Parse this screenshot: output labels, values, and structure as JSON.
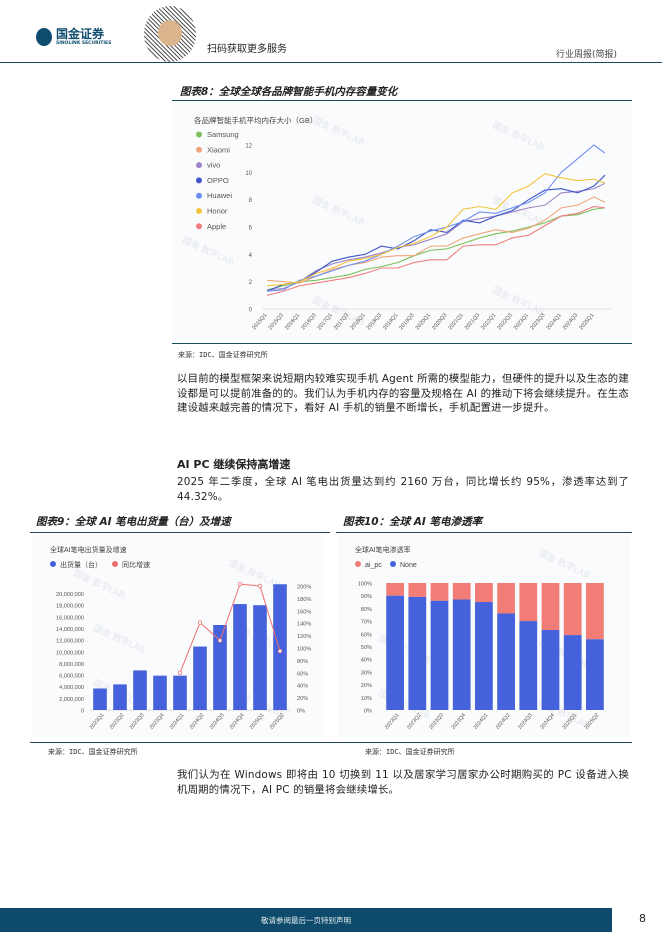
{
  "header": {
    "brand_cn": "国金证券",
    "brand_en": "SINOLINK SECURITIES",
    "qr_caption": "扫码获取更多服务",
    "report_type": "行业周报(简报)"
  },
  "fig8": {
    "title": "图表8：全球全球各品牌智能手机内存容量变化",
    "source": "来源：IDC、国金证券研究所",
    "chart_data": {
      "type": "line",
      "title": "各品牌智能手机平均内存大小（GB）",
      "xlabel": "",
      "ylabel": "",
      "ylim": [
        0,
        12
      ],
      "yticks": [
        0,
        2,
        4,
        6,
        8,
        10,
        12
      ],
      "grid": false,
      "legend": "top-left",
      "x": [
        "2015Q1",
        "2015Q3",
        "2016Q1",
        "2016Q3",
        "2017Q1",
        "2017Q3",
        "2018Q1",
        "2018Q3",
        "2019Q1",
        "2019Q3",
        "2020Q1",
        "2020Q3",
        "2021Q1",
        "2021Q3",
        "2022Q1",
        "2022Q3",
        "2023Q1",
        "2023Q3",
        "2024Q1",
        "2024Q3",
        "2025Q1",
        "2025Q2"
      ],
      "xtick_labels": [
        "2015Q1",
        "2015Q3",
        "2016Q1",
        "2016Q3",
        "2017Q1",
        "2017Q3",
        "2018Q1",
        "2018Q3",
        "2019Q1",
        "2019Q3",
        "2020Q1",
        "2020Q3",
        "2021Q1",
        "2021Q3",
        "2022Q1",
        "2022Q3",
        "2023Q1",
        "2023Q3",
        "2024Q1",
        "2024Q3",
        "2025Q1"
      ],
      "series": [
        {
          "name": "Samsung",
          "color": "#7cc05a",
          "values": [
            1.4,
            1.7,
            2.0,
            2.1,
            2.3,
            2.5,
            2.9,
            3.1,
            3.4,
            3.9,
            4.3,
            4.4,
            4.8,
            5.2,
            5.5,
            5.7,
            6.0,
            6.3,
            6.8,
            6.9,
            7.3,
            7.4
          ]
        },
        {
          "name": "Xiaomi",
          "color": "#eea77a",
          "values": [
            2.1,
            2.0,
            1.9,
            2.4,
            2.9,
            3.2,
            3.4,
            3.8,
            3.9,
            3.9,
            4.6,
            4.6,
            5.2,
            5.5,
            5.8,
            5.6,
            5.9,
            6.5,
            7.4,
            7.6,
            8.2,
            7.8
          ]
        },
        {
          "name": "vivo",
          "color": "#9e86c8",
          "values": [
            1.4,
            1.5,
            2.0,
            2.8,
            3.3,
            3.6,
            3.8,
            4.1,
            4.5,
            4.7,
            5.1,
            5.5,
            6.4,
            6.6,
            6.8,
            7.1,
            7.4,
            7.6,
            8.5,
            8.6,
            8.8,
            9.2
          ]
        },
        {
          "name": "OPPO",
          "color": "#3f55c9",
          "values": [
            1.3,
            1.8,
            2.0,
            2.7,
            3.5,
            3.8,
            4.0,
            4.6,
            4.4,
            5.0,
            5.8,
            5.6,
            6.5,
            6.3,
            6.8,
            7.2,
            8.0,
            8.7,
            8.8,
            8.5,
            9.0,
            9.8
          ]
        },
        {
          "name": "Huawei",
          "color": "#6f8ff0",
          "values": [
            1.3,
            1.4,
            2.1,
            2.4,
            2.8,
            3.2,
            3.5,
            4.0,
            4.6,
            5.3,
            5.7,
            6.0,
            6.4,
            7.1,
            7.0,
            7.4,
            7.8,
            8.5,
            10.0,
            11.0,
            12.0,
            11.4
          ]
        },
        {
          "name": "Honor",
          "color": "#f3c43c",
          "values": [
            1.7,
            1.8,
            2.0,
            2.6,
            3.0,
            3.5,
            3.7,
            4.0,
            4.5,
            4.8,
            5.3,
            6.0,
            7.3,
            7.5,
            7.3,
            8.5,
            9.0,
            9.9,
            9.6,
            9.4,
            9.5,
            9.2
          ]
        },
        {
          "name": "Apple",
          "color": "#ef7f7f",
          "values": [
            1.0,
            1.3,
            1.7,
            1.9,
            2.1,
            2.3,
            2.6,
            3.0,
            3.0,
            3.4,
            3.6,
            3.6,
            4.6,
            4.7,
            4.7,
            5.2,
            5.4,
            6.1,
            6.8,
            7.0,
            7.5,
            7.4
          ]
        }
      ]
    }
  },
  "body1": "以目前的模型框架来说短期内较难实现手机 Agent 所需的模型能力，但硬件的提升以及生态的建设都是可以提前准备的的。我们认为手机内存的容量及规格在 AI 的推动下将会继续提升。在生态建设越来越完善的情况下，看好 AI 手机的销量不断增长，手机配置进一步提升。",
  "section_heading": "AI PC 继续保持高增速",
  "body2": "2025 年二季度，全球 AI 笔电出货量达到约 2160 万台，同比增长约 95%，渗透率达到了 44.32%。",
  "fig9": {
    "title": "图表9：全球 AI 笔电出货量（台）及增速",
    "source": "来源：IDC、国金证券研究所",
    "chart_data": {
      "type": "bar",
      "title": "全球AI笔电出货量及增速",
      "legend": "top-left",
      "categories": [
        "2023Q1",
        "2023Q2",
        "2023Q3",
        "2023Q4",
        "2024Q1",
        "2024Q2",
        "2024Q3",
        "2024Q4",
        "2025Q1",
        "2025Q2"
      ],
      "series": [
        {
          "name": "出货量（台）",
          "type": "bar",
          "axis": "left",
          "color": "#4562dc",
          "values": [
            3700000,
            4400000,
            6800000,
            5900000,
            5900000,
            10900000,
            14600000,
            18200000,
            18000000,
            21600000
          ]
        },
        {
          "name": "同比增速",
          "type": "line",
          "axis": "right",
          "color": "#ef6f6f",
          "values": [
            null,
            null,
            null,
            null,
            60,
            141,
            112,
            203,
            200,
            95
          ]
        }
      ],
      "yticks_left": [
        "0",
        "2,000,000",
        "4,000,000",
        "6,000,000",
        "8,000,000",
        "10,000,000",
        "12,000,000",
        "14,000,000",
        "16,000,000",
        "18,000,000",
        "20,000,000"
      ],
      "yticks_right": [
        "0%",
        "20%",
        "40%",
        "60%",
        "80%",
        "100%",
        "120%",
        "140%",
        "160%",
        "180%",
        "200%"
      ],
      "ylim_left": [
        0,
        21300000
      ],
      "ylim_right": [
        0,
        200
      ]
    }
  },
  "fig10": {
    "title": "图表10：全球 AI 笔电渗透率",
    "source": "来源：IDC、国金证券研究所",
    "chart_data": {
      "type": "bar",
      "stacked": true,
      "title": "全球AI笔电渗透率",
      "legend": "top-left",
      "categories": [
        "2023Q1",
        "2023Q2",
        "2023Q3",
        "2023Q4",
        "2024Q1",
        "2024Q2",
        "2024Q3",
        "2024Q4",
        "2025Q1",
        "2025Q2"
      ],
      "series": [
        {
          "name": "ai_pc",
          "color": "#f27d76",
          "values": [
            10,
            11,
            14,
            13,
            15,
            24,
            30,
            37,
            41,
            44.32
          ]
        },
        {
          "name": "None",
          "color": "#4562dc",
          "values": [
            90,
            89,
            86,
            87,
            85,
            76,
            70,
            63,
            59,
            55.68
          ]
        }
      ],
      "yticks": [
        "0%",
        "10%",
        "20%",
        "30%",
        "40%",
        "50%",
        "60%",
        "70%",
        "80%",
        "90%",
        "100%"
      ],
      "ylim": [
        0,
        100
      ]
    }
  },
  "body3": "我们认为在 Windows 即将由 10 切换到 11 以及居家学习居家办公时期购买的 PC 设备进入换机周期的情况下，AI PC 的销量将会继续增长。",
  "footer": {
    "disclaimer": "敬请参阅最后一页特别声明",
    "page": "8"
  },
  "watermark": "国金 数字LAB"
}
